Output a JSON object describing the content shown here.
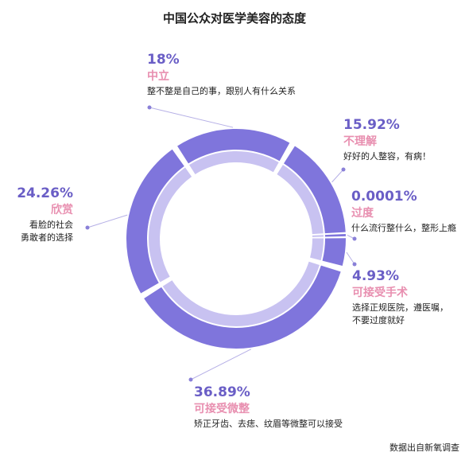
{
  "chart_data": {
    "type": "pie",
    "title": "中国公众对医学美容的态度",
    "categories": [
      "中立",
      "不理解",
      "过度",
      "可接受手术",
      "可接受微整",
      "欣赏"
    ],
    "values": [
      18,
      15.92,
      0.0001,
      4.93,
      36.89,
      24.26
    ],
    "labels": [
      {
        "pct": "18%",
        "name": "中立",
        "desc": [
          "整不整是自己的事，跟别人有什么关系"
        ]
      },
      {
        "pct": "15.92%",
        "name": "不理解",
        "desc": [
          "好好的人整容，有病！"
        ]
      },
      {
        "pct": "0.0001%",
        "name": "过度",
        "desc": [
          "什么流行整什么，整形上瘾"
        ]
      },
      {
        "pct": "4.93%",
        "name": "可接受手术",
        "desc": [
          "选择正规医院，遵医嘱，",
          "不要过度就好"
        ]
      },
      {
        "pct": "36.89%",
        "name": "可接受微整",
        "desc": [
          "矫正牙齿、去痣、纹眉等微整可以接受"
        ]
      },
      {
        "pct": "24.26%",
        "name": "欣赏",
        "desc": [
          "看脸的社会",
          "勇敢者的选择"
        ]
      }
    ],
    "source": "数据出自新氧调查",
    "colors": {
      "outer_ring": "#7f75dc",
      "inner_ring": "#c8c2f1",
      "percent_text": "#6a5ec6",
      "category_text": "#e88fb0",
      "leader_line": "#b6b0e6",
      "dot": "#8a80d8"
    }
  }
}
